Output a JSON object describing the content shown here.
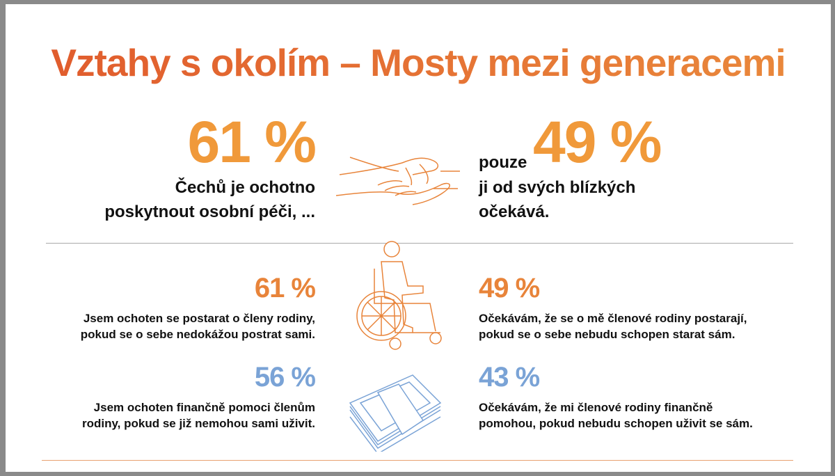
{
  "title": "Vztahy s okolím – Mosty mezi generacemi",
  "headline_left": {
    "value": "61 %",
    "line1": "Čechů je ochotno",
    "line2": "poskytnout osobní péči, ..."
  },
  "headline_right": {
    "prefix": "pouze",
    "value": "49 %",
    "line1": "ji od svých blízkých",
    "line2": "očekává."
  },
  "stats": [
    {
      "value": "61 %",
      "line1": "Jsem ochoten se postarat o členy rodiny,",
      "line2": "pokud se o sebe nedokážou postrat sami.",
      "color": "#e8843a"
    },
    {
      "value": "49 %",
      "line1": "Očekávám, že se o mě členové rodiny postarají,",
      "line2": "pokud se o sebe nebudu schopen starat sám.",
      "color": "#e8843a"
    },
    {
      "value": "56 %",
      "line1": "Jsem ochoten finančně pomoci členům",
      "line2": "rodiny, pokud se již nemohou sami uživit.",
      "color": "#7aa3d6"
    },
    {
      "value": "43 %",
      "line1": "Očekávám, že mi členové rodiny finančně",
      "line2": "pomohou, pokud nebudu schopen uživit se sám.",
      "color": "#7aa3d6"
    }
  ],
  "icons": [
    "holding-hands-icon",
    "wheelchair-person-icon",
    "money-stack-icon"
  ]
}
